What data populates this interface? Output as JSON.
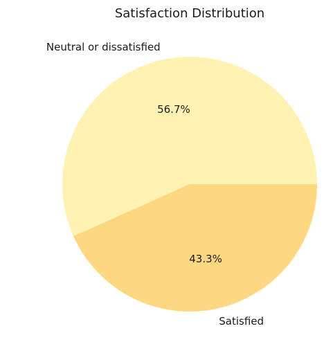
{
  "chart_data": {
    "type": "pie",
    "title": "Satisfaction Distribution",
    "start_angle_deg": 0,
    "direction": "counterclockwise",
    "slices": [
      {
        "label": "Neutral or dissatisfied",
        "value": 56.7,
        "pct_label": "56.7%",
        "color": "#FFF2B3"
      },
      {
        "label": "Satisfied",
        "value": 43.3,
        "pct_label": "43.3%",
        "color": "#FDD880"
      }
    ]
  }
}
